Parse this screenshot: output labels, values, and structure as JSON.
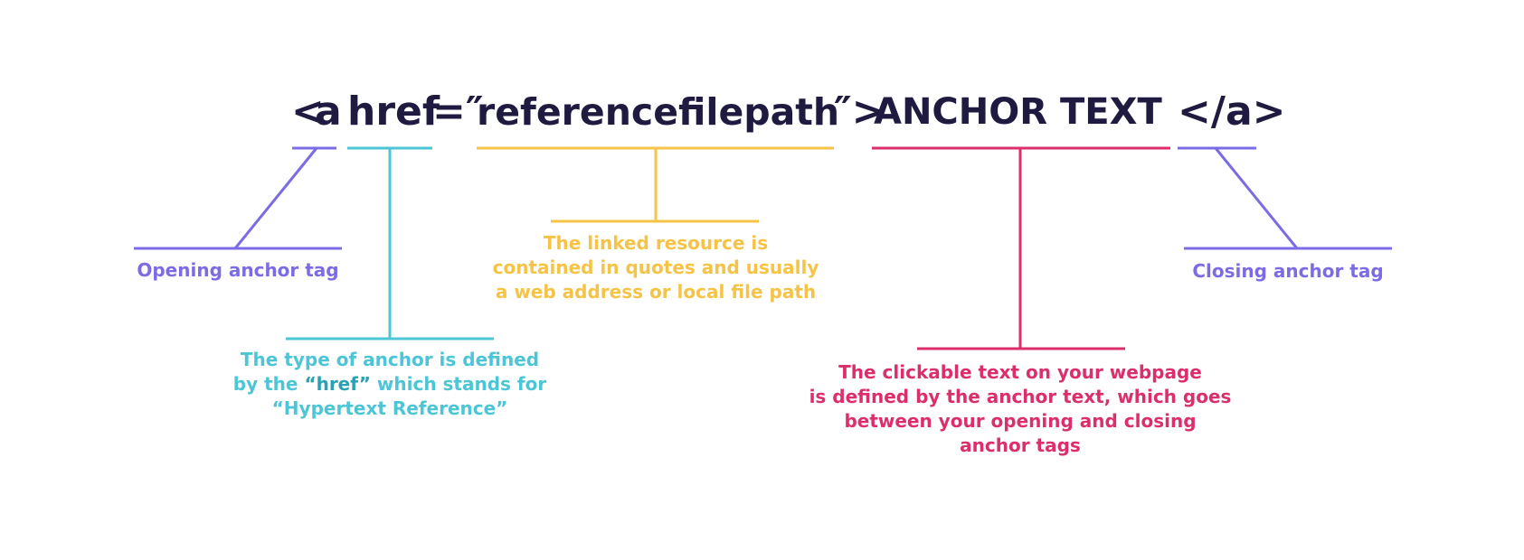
{
  "code": {
    "open_bracket": "<",
    "tag_a": "a",
    "attr_name": "href",
    "equals_quote": "=″",
    "attr_value": "referencefilepath",
    "quote_close_bracket": "″>",
    "anchor_text": "ANCHOR TEXT",
    "closing_tag": "</a>"
  },
  "labels": {
    "opening_tag": "Opening anchor tag",
    "closing_tag": "Closing anchor tag",
    "href": {
      "line1": "The type of anchor is defined",
      "line2_prefix": "by the ",
      "line2_highlight": "“href”",
      "line2_suffix": " which stands for",
      "line3": "“Hypertext Reference”"
    },
    "resource": {
      "line1": "The linked resource is",
      "line2": "contained in quotes and usually",
      "line3": "a web address or local file path"
    },
    "anchor_text": {
      "line1": "The clickable text on your webpage",
      "line2": "is defined by the anchor text, which goes",
      "line3": "between your opening and closing",
      "line4": "anchor tags"
    }
  },
  "colors": {
    "code_text": "#1f1a3f",
    "purple": "#7b6ce6",
    "cyan": "#4cc6d6",
    "yellow": "#f5c346",
    "pink": "#dd2e6c"
  }
}
